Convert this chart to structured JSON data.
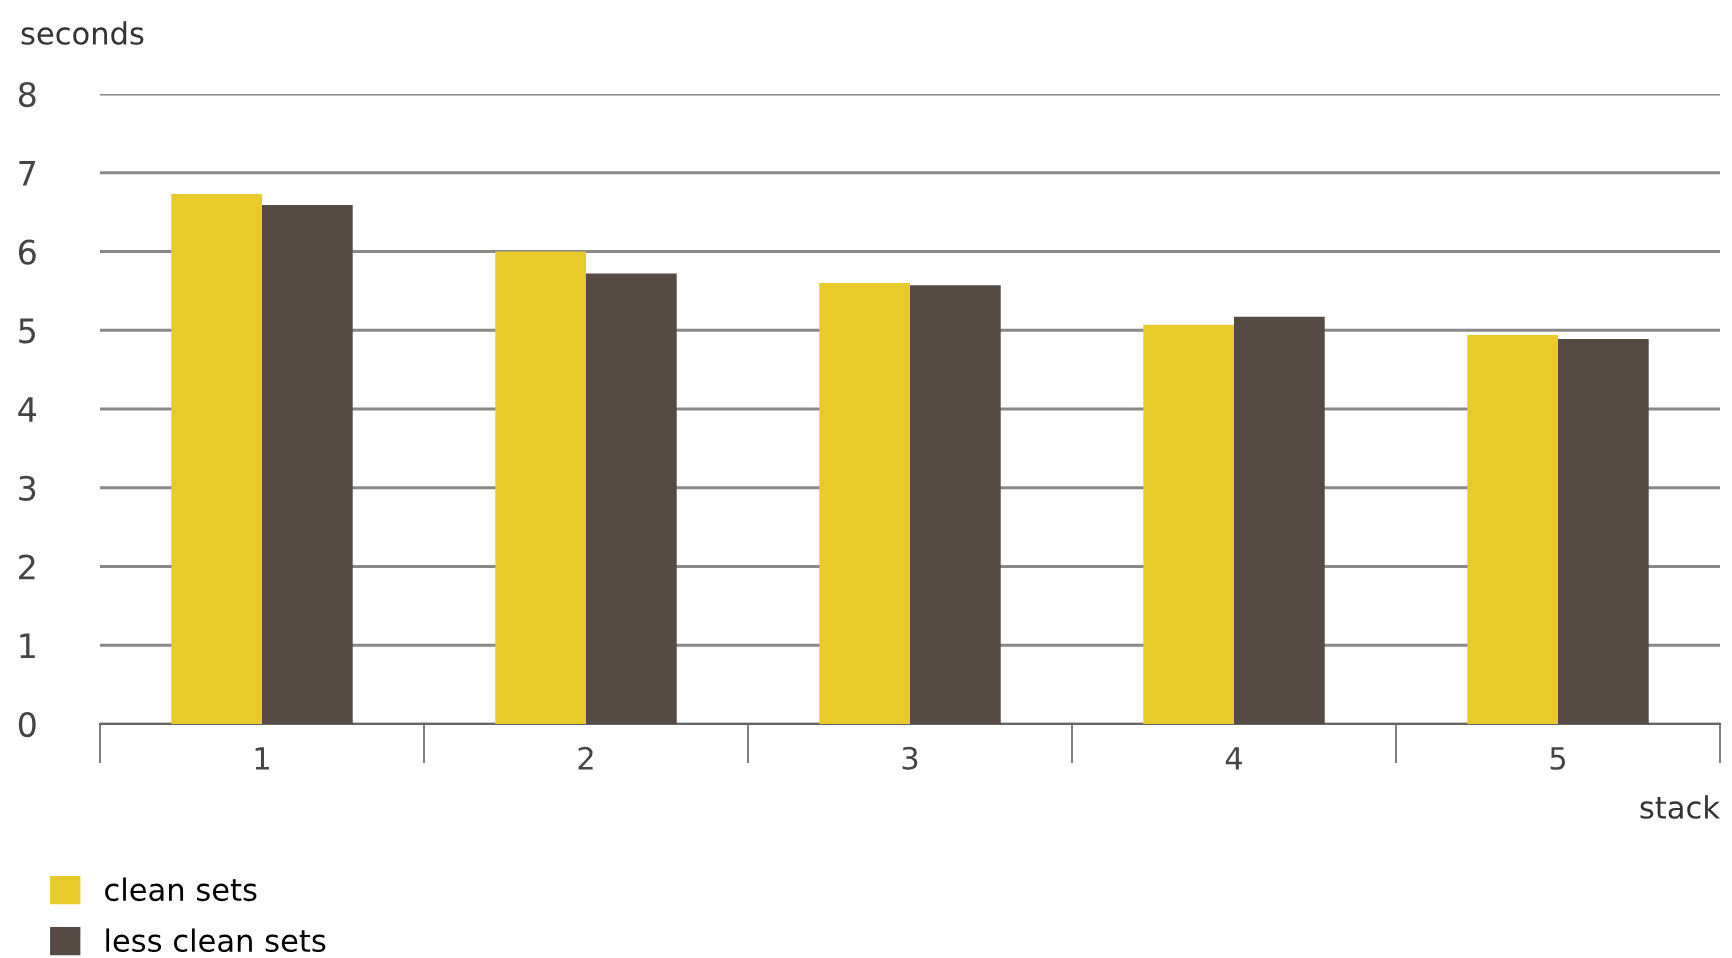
{
  "chart_data": {
    "type": "bar",
    "ylabel": "seconds",
    "xlabel": "stack",
    "categories": [
      "1",
      "2",
      "3",
      "4",
      "5"
    ],
    "series": [
      {
        "name": "clean sets",
        "color": "#e8cb2a",
        "values": [
          6.73,
          6.0,
          5.6,
          5.07,
          4.94
        ]
      },
      {
        "name": "less clean sets",
        "color": "#564a45",
        "values": [
          6.59,
          5.72,
          5.57,
          5.17,
          4.89
        ]
      }
    ],
    "ylim": [
      0,
      8
    ],
    "yticks": [
      0,
      1,
      2,
      3,
      4,
      5,
      6,
      7,
      8
    ],
    "grid": "y",
    "legend": "bottom left"
  }
}
